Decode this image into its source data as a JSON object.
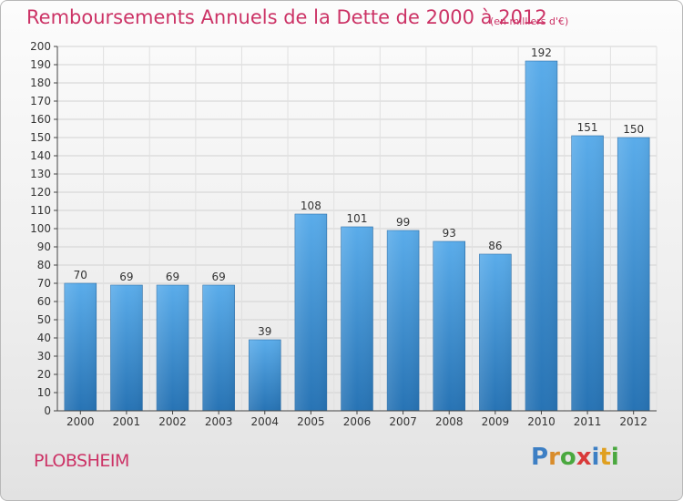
{
  "title": "Remboursements Annuels de la Dette de 2000 à 2012",
  "unit_note": "(en milliers d'€)",
  "commune": "PLOBSHEIM",
  "logo": {
    "letters": [
      "P",
      "r",
      "o",
      "x",
      "i",
      "t",
      "i"
    ],
    "colors": [
      "#3d7fc4",
      "#d98c2b",
      "#4aa83f",
      "#d93a3a",
      "#3d7fc4",
      "#e0a020",
      "#4aa83f"
    ]
  },
  "colors": {
    "accent": "#cc3366",
    "bar_top": "#5aacea",
    "bar_bottom": "#2773b4"
  },
  "chart_data": {
    "type": "bar",
    "categories": [
      "2000",
      "2001",
      "2002",
      "2003",
      "2004",
      "2005",
      "2006",
      "2007",
      "2008",
      "2009",
      "2010",
      "2011",
      "2012"
    ],
    "values": [
      70,
      69,
      69,
      69,
      39,
      108,
      101,
      99,
      93,
      86,
      192,
      151,
      150
    ],
    "ylim": [
      0,
      200
    ],
    "ytick_step": 10,
    "grid": true,
    "data_labels": true
  }
}
